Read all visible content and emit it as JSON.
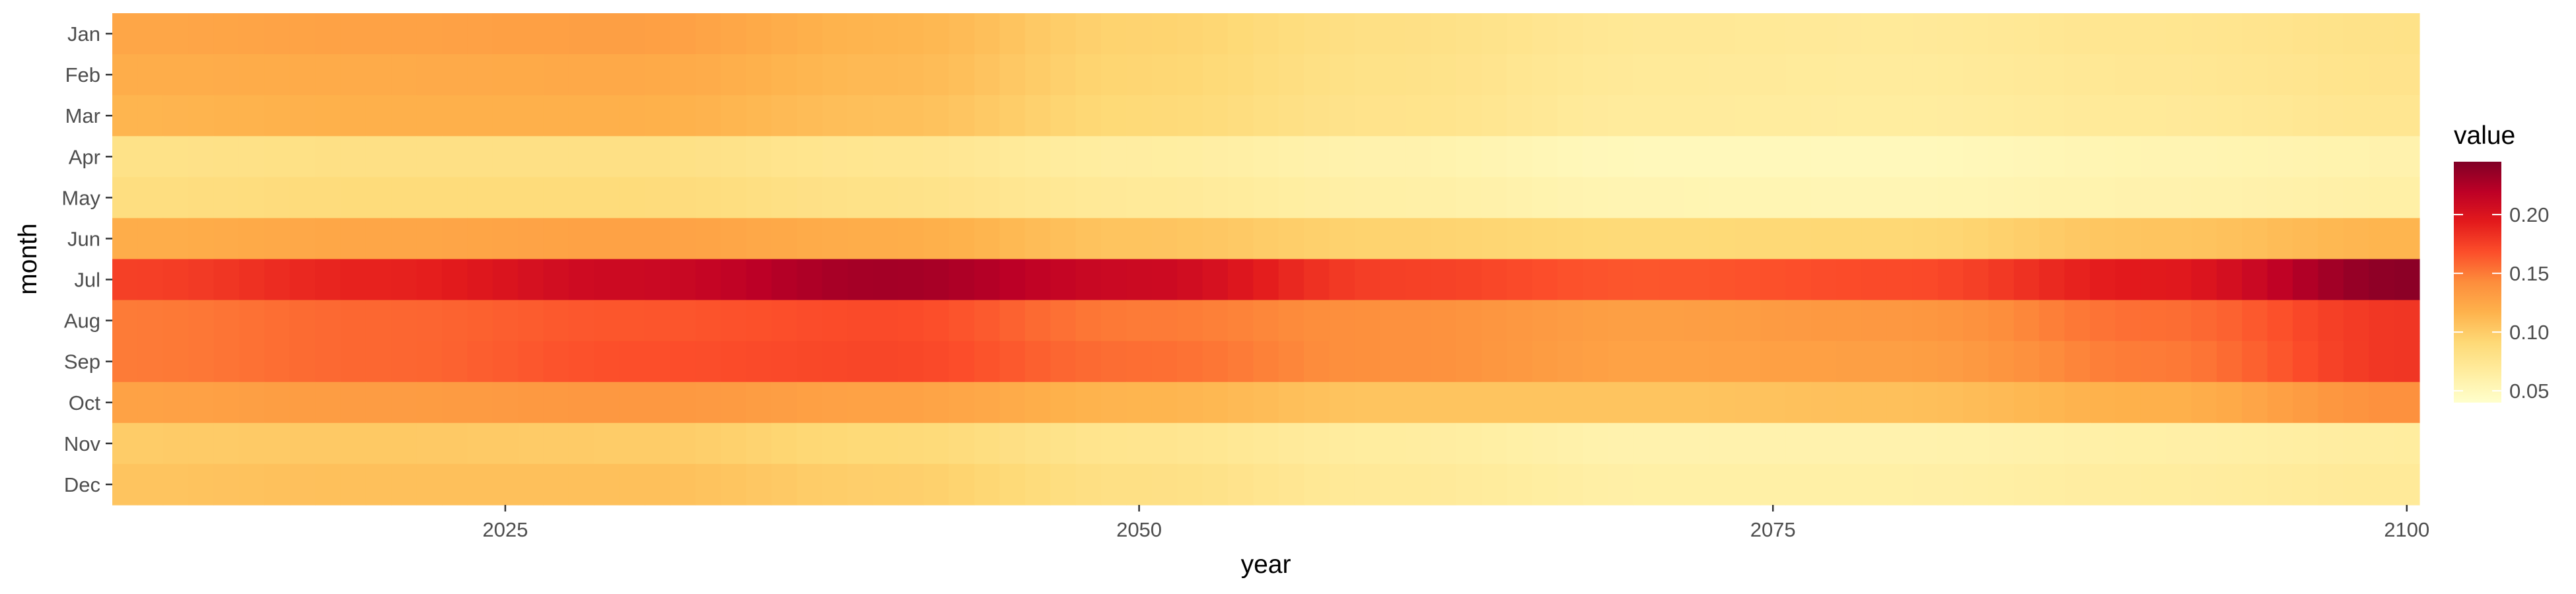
{
  "chart_data": {
    "type": "heatmap",
    "xlabel": "year",
    "ylabel": "month",
    "x_range": [
      2010,
      2100
    ],
    "x_ticks": [
      2025,
      2050,
      2075,
      2100
    ],
    "months": [
      "Jan",
      "Feb",
      "Mar",
      "Apr",
      "May",
      "Jun",
      "Jul",
      "Aug",
      "Sep",
      "Oct",
      "Nov",
      "Dec"
    ],
    "legend": {
      "title": "value",
      "position": "right",
      "range": [
        0.04,
        0.245
      ],
      "ticks": [
        0.05,
        0.1,
        0.15,
        0.2
      ],
      "tick_labels": [
        "0.05",
        "0.10",
        "0.15",
        "0.20"
      ]
    },
    "colorscale": [
      "#ffffcc",
      "#ffeda0",
      "#fed976",
      "#feb24c",
      "#fd8d3c",
      "#fc4e2a",
      "#e31a1c",
      "#bd0026",
      "#800026"
    ],
    "series_profile": {
      "note_years": [
        2010,
        2020,
        2030,
        2040,
        2050,
        2060,
        2070,
        2080,
        2090,
        2100
      ],
      "Jan": [
        0.125,
        0.128,
        0.13,
        0.115,
        0.095,
        0.082,
        0.072,
        0.07,
        0.075,
        0.08
      ],
      "Feb": [
        0.12,
        0.122,
        0.123,
        0.112,
        0.093,
        0.08,
        0.07,
        0.068,
        0.073,
        0.078
      ],
      "Mar": [
        0.115,
        0.118,
        0.118,
        0.108,
        0.09,
        0.078,
        0.068,
        0.066,
        0.07,
        0.075
      ],
      "Apr": [
        0.08,
        0.082,
        0.082,
        0.075,
        0.065,
        0.058,
        0.05,
        0.05,
        0.055,
        0.058
      ],
      "May": [
        0.085,
        0.088,
        0.088,
        0.08,
        0.07,
        0.062,
        0.055,
        0.054,
        0.058,
        0.062
      ],
      "Jun": [
        0.12,
        0.125,
        0.128,
        0.12,
        0.105,
        0.095,
        0.09,
        0.092,
        0.105,
        0.115
      ],
      "Jul": [
        0.175,
        0.19,
        0.21,
        0.23,
        0.21,
        0.175,
        0.165,
        0.17,
        0.195,
        0.24
      ],
      "Aug": [
        0.15,
        0.158,
        0.165,
        0.17,
        0.15,
        0.14,
        0.13,
        0.135,
        0.155,
        0.18
      ],
      "Sep": [
        0.15,
        0.158,
        0.168,
        0.172,
        0.155,
        0.14,
        0.128,
        0.13,
        0.15,
        0.18
      ],
      "Oct": [
        0.128,
        0.132,
        0.135,
        0.128,
        0.115,
        0.105,
        0.105,
        0.108,
        0.118,
        0.14
      ],
      "Nov": [
        0.1,
        0.102,
        0.1,
        0.09,
        0.076,
        0.066,
        0.058,
        0.058,
        0.062,
        0.066
      ],
      "Dec": [
        0.105,
        0.108,
        0.108,
        0.098,
        0.082,
        0.07,
        0.062,
        0.062,
        0.066,
        0.07
      ]
    }
  }
}
